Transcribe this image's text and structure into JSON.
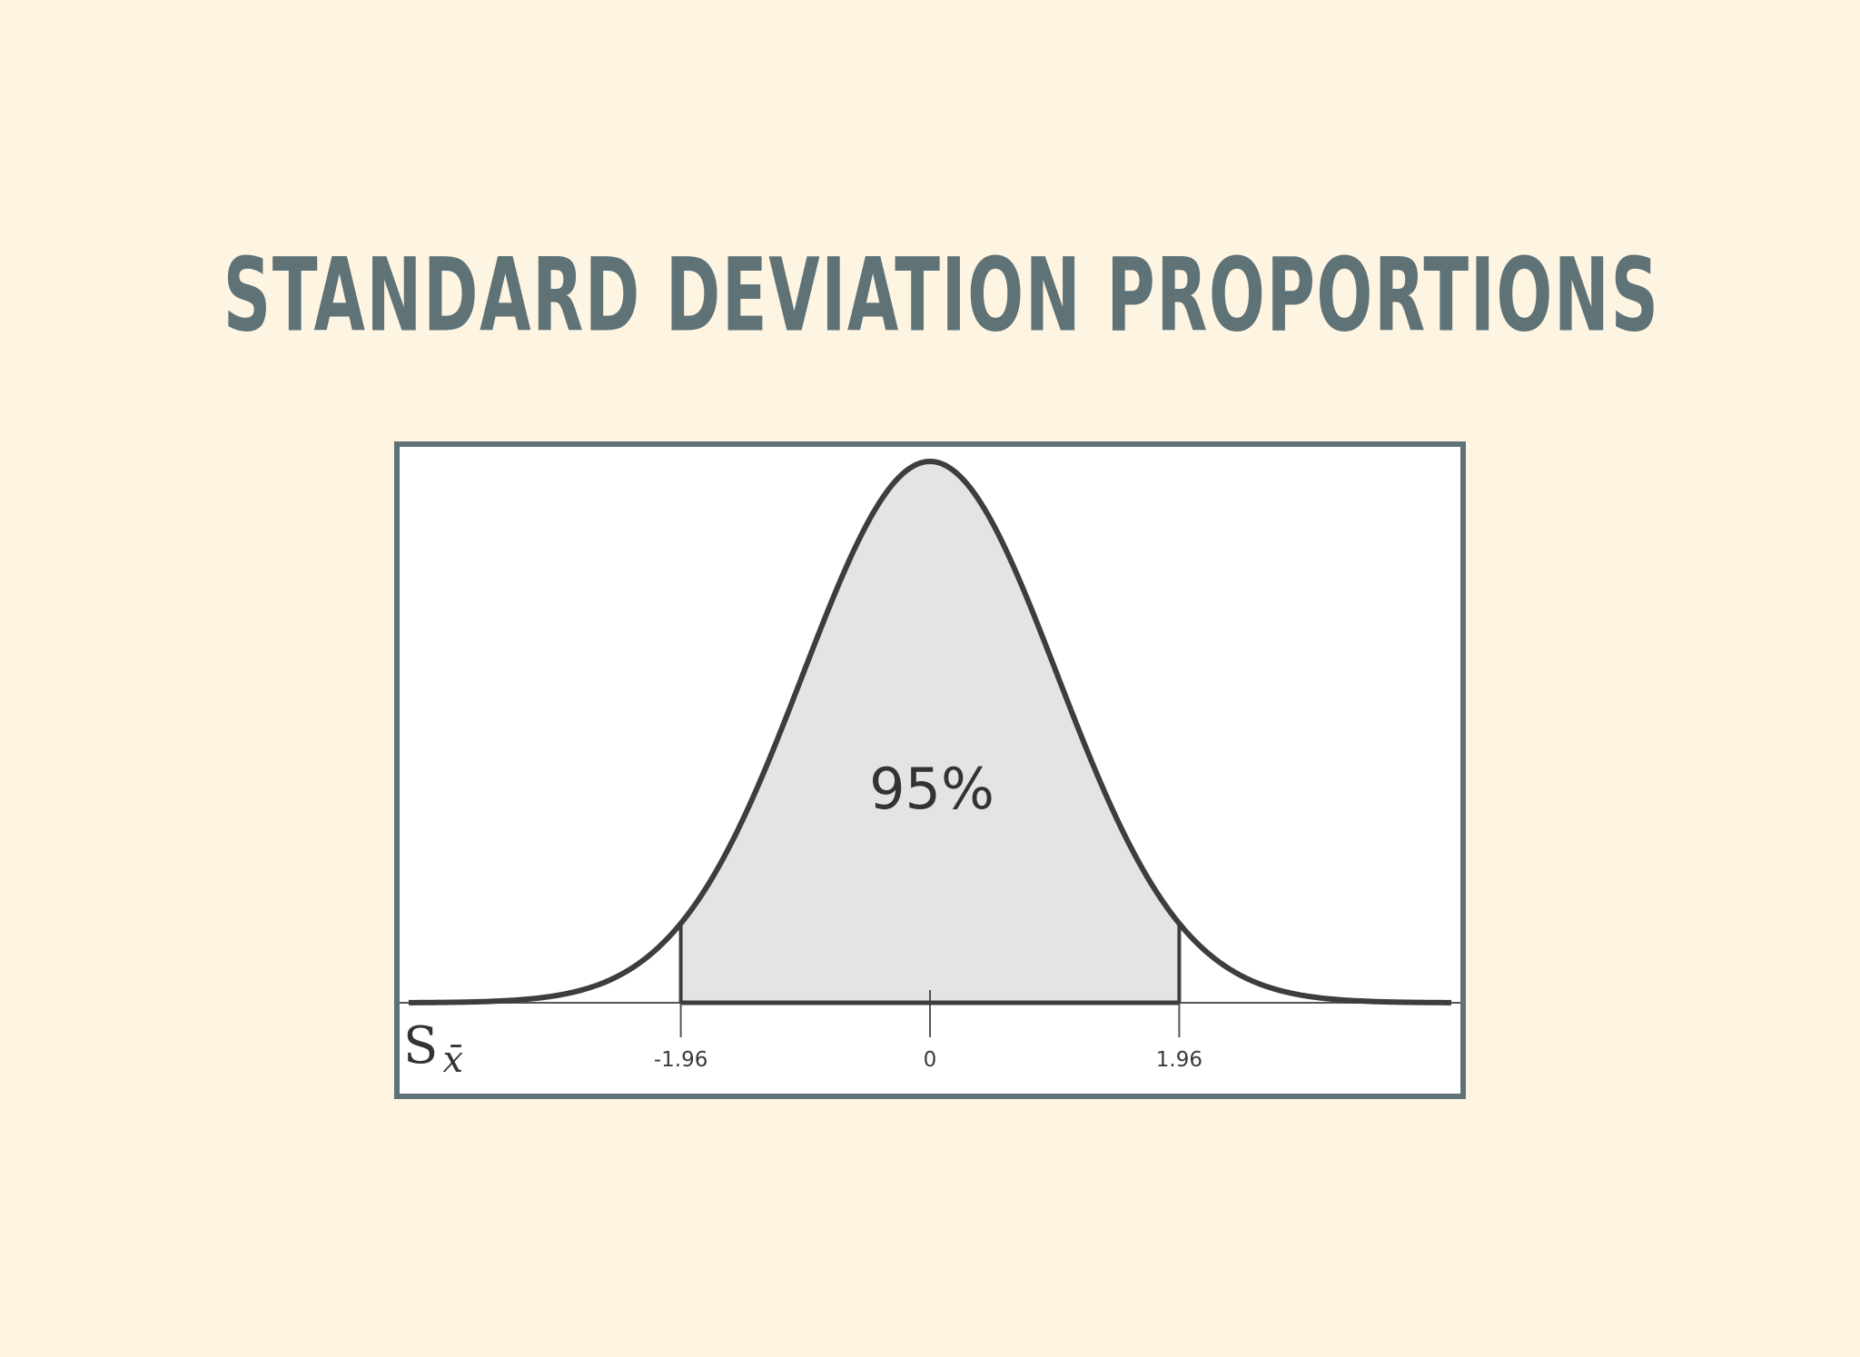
{
  "slide": {
    "title": "STANDARD DEVIATION PROPORTIONS"
  },
  "chart_data": {
    "type": "area",
    "distribution": "standard-normal",
    "x_range": [
      -4.1,
      4.1
    ],
    "ticks": [
      {
        "value": -1.96,
        "label": "-1.96"
      },
      {
        "value": 0,
        "label": "0"
      },
      {
        "value": 1.96,
        "label": "1.96"
      }
    ],
    "shaded_region": {
      "from": -1.96,
      "to": 1.96,
      "label": "95%"
    },
    "axis_symbol": {
      "base": "S",
      "sub": "x̄"
    },
    "grid": false,
    "legend": "none",
    "colors": {
      "curve": "#3d3d3d",
      "fill": "#e5e4e5",
      "axis": "#555555",
      "frame": "#5f7276"
    }
  }
}
